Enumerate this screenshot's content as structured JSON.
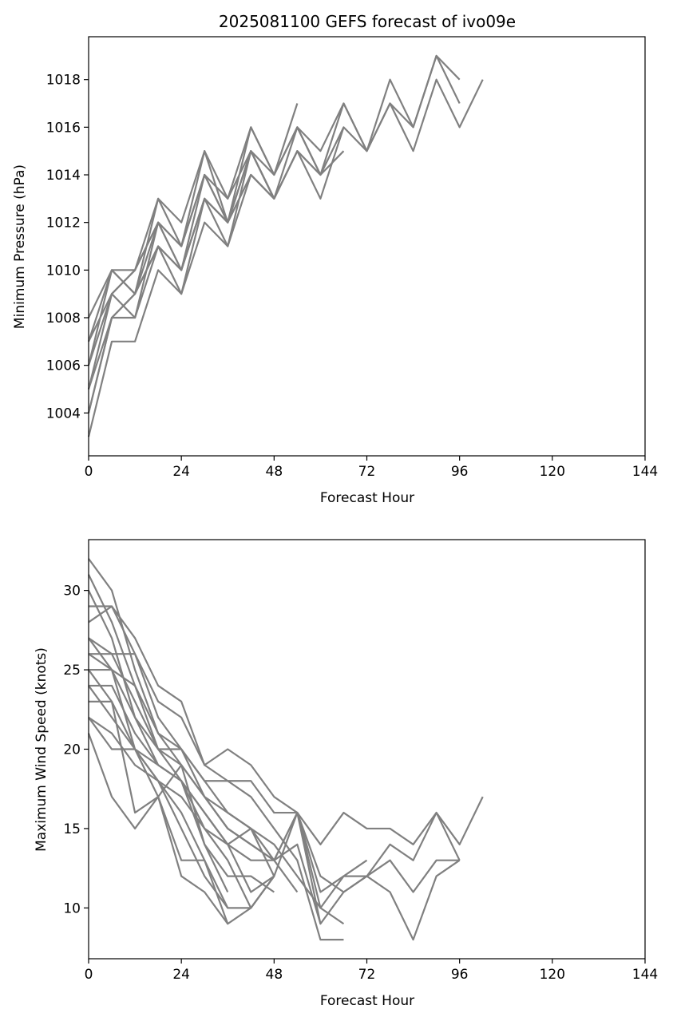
{
  "chart_data": [
    {
      "type": "line",
      "title": "2025081100 GEFS forecast of ivo09e",
      "xlabel": "Forecast Hour",
      "ylabel": "Minimum Pressure (hPa)",
      "xlim": [
        0,
        144
      ],
      "ylim": [
        1002.2,
        1019.8
      ],
      "xticks": [
        0,
        24,
        48,
        72,
        96,
        120,
        144
      ],
      "yticks": [
        1004,
        1006,
        1008,
        1010,
        1012,
        1014,
        1016,
        1018
      ],
      "line_color": "#808080",
      "grid": false,
      "legend": "none",
      "series": [
        {
          "x": [
            0,
            6,
            12,
            18,
            24,
            30,
            36,
            42,
            48,
            54,
            60,
            66,
            72,
            78,
            84,
            90,
            96
          ],
          "y": [
            1008,
            1010,
            1010,
            1013,
            1012,
            1015,
            1013,
            1016,
            1014,
            1016,
            1015,
            1017,
            1015,
            1018,
            1016,
            1019,
            1018
          ]
        },
        {
          "x": [
            0,
            6,
            12,
            18,
            24,
            30,
            36,
            42,
            48,
            54,
            60,
            66,
            72,
            78,
            84,
            90,
            96
          ],
          "y": [
            1007,
            1010,
            1009,
            1013,
            1011,
            1015,
            1012,
            1016,
            1014,
            1016,
            1014,
            1017,
            1015,
            1017,
            1016,
            1019,
            1017
          ]
        },
        {
          "x": [
            0,
            6,
            12,
            18,
            24,
            30,
            36,
            42,
            48,
            54,
            60,
            66,
            72,
            78,
            84,
            90,
            96,
            102
          ],
          "y": [
            1005,
            1009,
            1010,
            1012,
            1011,
            1014,
            1012,
            1015,
            1013,
            1016,
            1014,
            1016,
            1015,
            1017,
            1015,
            1018,
            1016,
            1018
          ]
        },
        {
          "x": [
            0,
            6,
            12,
            18,
            24,
            30,
            36,
            42,
            48,
            54
          ],
          "y": [
            1006,
            1009,
            1008,
            1012,
            1010,
            1014,
            1012,
            1015,
            1014,
            1017
          ]
        },
        {
          "x": [
            0,
            6,
            12,
            18,
            24,
            30,
            36,
            42,
            48,
            54,
            60,
            66
          ],
          "y": [
            1004,
            1008,
            1009,
            1011,
            1010,
            1013,
            1011,
            1015,
            1013,
            1015,
            1014,
            1015
          ]
        },
        {
          "x": [
            0,
            6,
            12,
            18,
            24,
            30,
            36,
            42,
            48,
            54,
            60,
            66
          ],
          "y": [
            1003,
            1007,
            1007,
            1010,
            1009,
            1012,
            1011,
            1014,
            1013,
            1015,
            1013,
            1016
          ]
        },
        {
          "x": [
            0,
            6,
            12,
            18,
            24,
            30,
            36,
            42,
            48,
            54,
            60
          ],
          "y": [
            1005,
            1008,
            1008,
            1011,
            1009,
            1013,
            1012,
            1014,
            1013,
            1015,
            1014
          ]
        },
        {
          "x": [
            0,
            6,
            12,
            18,
            24,
            30,
            36,
            42,
            48
          ],
          "y": [
            1006,
            1010,
            1009,
            1012,
            1011,
            1014,
            1013,
            1015,
            1013
          ]
        },
        {
          "x": [
            0,
            6,
            12,
            18,
            24,
            30,
            36,
            42,
            48
          ],
          "y": [
            1007,
            1009,
            1010,
            1012,
            1010,
            1013,
            1012,
            1014,
            1013
          ]
        },
        {
          "x": [
            0,
            6,
            12,
            18,
            24,
            30,
            36,
            42,
            48
          ],
          "y": [
            1004,
            1008,
            1009,
            1011,
            1010,
            1013,
            1012,
            1015,
            1013
          ]
        }
      ]
    },
    {
      "type": "line",
      "title": "",
      "xlabel": "Forecast Hour",
      "ylabel": "Maximum Wind Speed (knots)",
      "xlim": [
        0,
        144
      ],
      "ylim": [
        6.8,
        33.2
      ],
      "xticks": [
        0,
        24,
        48,
        72,
        96,
        120,
        144
      ],
      "yticks": [
        10,
        15,
        20,
        25,
        30
      ],
      "line_color": "#808080",
      "grid": false,
      "legend": "none",
      "series": [
        {
          "x": [
            0,
            6,
            12,
            18,
            24,
            30,
            36,
            42,
            48,
            54,
            60,
            66,
            72,
            78,
            84,
            90,
            96,
            102
          ],
          "y": [
            32,
            30,
            25,
            21,
            20,
            18,
            16,
            15,
            13,
            16,
            14,
            16,
            15,
            15,
            14,
            16,
            14,
            17
          ]
        },
        {
          "x": [
            0,
            6,
            12,
            18,
            24,
            30,
            36,
            42,
            48,
            54,
            60,
            66,
            72,
            78,
            84,
            90,
            96
          ],
          "y": [
            31,
            28,
            24,
            20,
            19,
            17,
            15,
            14,
            13,
            16,
            12,
            11,
            12,
            14,
            13,
            16,
            13
          ]
        },
        {
          "x": [
            0,
            6,
            12,
            18,
            24,
            30,
            36,
            42,
            48,
            54,
            60,
            66,
            72,
            78,
            84,
            90,
            96
          ],
          "y": [
            30,
            27,
            22,
            20,
            18,
            16,
            14,
            15,
            12,
            16,
            11,
            12,
            12,
            13,
            11,
            13,
            13
          ]
        },
        {
          "x": [
            0,
            6,
            12,
            18,
            24,
            30,
            36,
            42,
            48,
            54,
            60,
            66,
            72,
            78,
            84,
            90,
            96
          ],
          "y": [
            29,
            29,
            27,
            24,
            23,
            19,
            20,
            19,
            17,
            16,
            9,
            11,
            12,
            11,
            8,
            12,
            13
          ]
        },
        {
          "x": [
            0,
            6,
            12,
            18,
            24,
            30,
            36,
            42,
            48,
            54,
            60,
            66,
            72
          ],
          "y": [
            28,
            29,
            26,
            23,
            22,
            19,
            18,
            18,
            16,
            16,
            10,
            12,
            13
          ]
        },
        {
          "x": [
            0,
            6,
            12,
            18,
            24,
            30,
            36,
            42,
            48,
            54,
            60,
            66
          ],
          "y": [
            27,
            26,
            26,
            22,
            20,
            18,
            18,
            17,
            15,
            13,
            8,
            8
          ]
        },
        {
          "x": [
            0,
            6,
            12,
            18,
            24,
            30,
            36,
            42,
            48,
            54,
            60,
            66
          ],
          "y": [
            26,
            25,
            24,
            21,
            19,
            17,
            16,
            15,
            14,
            12,
            10,
            9
          ]
        },
        {
          "x": [
            0,
            6,
            12,
            18,
            24,
            30,
            36,
            42,
            48,
            54,
            60
          ],
          "y": [
            26,
            26,
            23,
            20,
            20,
            17,
            15,
            14,
            13,
            14,
            9
          ]
        },
        {
          "x": [
            0,
            6,
            12,
            18,
            24,
            30,
            36,
            42,
            48,
            54
          ],
          "y": [
            25,
            25,
            22,
            19,
            18,
            16,
            14,
            13,
            13,
            11
          ]
        },
        {
          "x": [
            0,
            6,
            12,
            18,
            24,
            30,
            36,
            42,
            48
          ],
          "y": [
            24,
            24,
            21,
            19,
            18,
            15,
            13,
            10,
            12
          ]
        },
        {
          "x": [
            0,
            6,
            12,
            18,
            24,
            30,
            36,
            42,
            48
          ],
          "y": [
            24,
            22,
            20,
            18,
            17,
            15,
            14,
            11,
            12
          ]
        },
        {
          "x": [
            0,
            6,
            12,
            18,
            24,
            30,
            36,
            42,
            48
          ],
          "y": [
            23,
            23,
            20,
            19,
            18,
            14,
            12,
            12,
            11
          ]
        },
        {
          "x": [
            0,
            6,
            12,
            18,
            24,
            30,
            36,
            42,
            48
          ],
          "y": [
            22,
            21,
            19,
            18,
            16,
            13,
            10,
            10,
            12
          ]
        },
        {
          "x": [
            0,
            6,
            12,
            18,
            24,
            30,
            36,
            42,
            48
          ],
          "y": [
            22,
            20,
            20,
            17,
            13,
            13,
            9,
            10,
            12
          ]
        },
        {
          "x": [
            0,
            6,
            12,
            18,
            24,
            30,
            36
          ],
          "y": [
            21,
            17,
            15,
            17,
            19,
            14,
            11
          ]
        },
        {
          "x": [
            0,
            6,
            12,
            18,
            24,
            30,
            36
          ],
          "y": [
            25,
            23,
            16,
            17,
            12,
            11,
            9
          ]
        },
        {
          "x": [
            0,
            6,
            12,
            18,
            24,
            30,
            36
          ],
          "y": [
            27,
            25,
            20,
            18,
            15,
            12,
            10
          ]
        }
      ]
    }
  ]
}
